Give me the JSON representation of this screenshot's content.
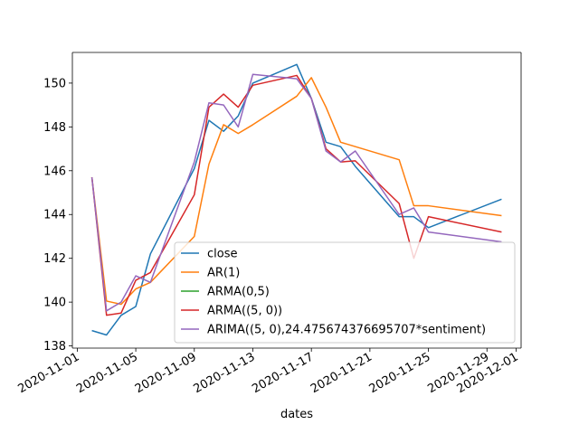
{
  "chart_data": {
    "type": "line",
    "title": "",
    "xlabel": "dates",
    "ylabel": "",
    "x_ticks": [
      {
        "date": "2020-11-01",
        "label": "2020-11-01"
      },
      {
        "date": "2020-11-05",
        "label": "2020-11-05"
      },
      {
        "date": "2020-11-09",
        "label": "2020-11-09"
      },
      {
        "date": "2020-11-13",
        "label": "2020-11-13"
      },
      {
        "date": "2020-11-17",
        "label": "2020-11-17"
      },
      {
        "date": "2020-11-21",
        "label": "2020-11-21"
      },
      {
        "date": "2020-11-25",
        "label": "2020-11-25"
      },
      {
        "date": "2020-11-29",
        "label": "2020-11-29"
      },
      {
        "date": "2020-12-01",
        "label": "2020-12-01"
      }
    ],
    "y_ticks": [
      {
        "value": 138,
        "label": "138"
      },
      {
        "value": 140,
        "label": "140"
      },
      {
        "value": 142,
        "label": "142"
      },
      {
        "value": 144,
        "label": "144"
      },
      {
        "value": 146,
        "label": "146"
      },
      {
        "value": 148,
        "label": "148"
      },
      {
        "value": 150,
        "label": "150"
      }
    ],
    "xlim": [
      "2020-10-31T16:00",
      "2020-12-01T08:00"
    ],
    "ylim": [
      137.9,
      151.4
    ],
    "grid": false,
    "legend_position": "lower-right",
    "series": [
      {
        "name": "close",
        "color": "#1f77b4",
        "points": [
          {
            "x": "2020-11-02",
            "y": 138.7
          },
          {
            "x": "2020-11-03",
            "y": 138.5
          },
          {
            "x": "2020-11-04",
            "y": 139.4
          },
          {
            "x": "2020-11-05",
            "y": 139.8
          },
          {
            "x": "2020-11-06",
            "y": 142.2
          },
          {
            "x": "2020-11-09",
            "y": 146.1
          },
          {
            "x": "2020-11-10",
            "y": 148.3
          },
          {
            "x": "2020-11-11",
            "y": 147.8
          },
          {
            "x": "2020-11-12",
            "y": 148.5
          },
          {
            "x": "2020-11-13",
            "y": 150.0
          },
          {
            "x": "2020-11-16",
            "y": 150.85
          },
          {
            "x": "2020-11-17",
            "y": 149.3
          },
          {
            "x": "2020-11-18",
            "y": 147.3
          },
          {
            "x": "2020-11-19",
            "y": 147.1
          },
          {
            "x": "2020-11-20",
            "y": 146.2
          },
          {
            "x": "2020-11-23",
            "y": 143.9
          },
          {
            "x": "2020-11-24",
            "y": 143.9
          },
          {
            "x": "2020-11-25",
            "y": 143.4
          },
          {
            "x": "2020-11-30",
            "y": 144.7
          }
        ]
      },
      {
        "name": "AR(1)",
        "color": "#ff7f0e",
        "points": [
          {
            "x": "2020-11-02",
            "y": 145.7
          },
          {
            "x": "2020-11-03",
            "y": 140.05
          },
          {
            "x": "2020-11-04",
            "y": 139.9
          },
          {
            "x": "2020-11-05",
            "y": 140.6
          },
          {
            "x": "2020-11-06",
            "y": 140.9
          },
          {
            "x": "2020-11-09",
            "y": 143.0
          },
          {
            "x": "2020-11-10",
            "y": 146.3
          },
          {
            "x": "2020-11-11",
            "y": 148.1
          },
          {
            "x": "2020-11-12",
            "y": 147.7
          },
          {
            "x": "2020-11-13",
            "y": 148.1
          },
          {
            "x": "2020-11-16",
            "y": 149.4
          },
          {
            "x": "2020-11-17",
            "y": 150.25
          },
          {
            "x": "2020-11-18",
            "y": 148.9
          },
          {
            "x": "2020-11-19",
            "y": 147.3
          },
          {
            "x": "2020-11-23",
            "y": 146.5
          },
          {
            "x": "2020-11-24",
            "y": 144.4
          },
          {
            "x": "2020-11-25",
            "y": 144.4
          },
          {
            "x": "2020-11-30",
            "y": 143.95
          }
        ]
      },
      {
        "name": "ARMA(0,5)",
        "color": "#2ca02c",
        "points": []
      },
      {
        "name": "ARMA((5, 0))",
        "color": "#d62728",
        "points": [
          {
            "x": "2020-11-02",
            "y": 145.7
          },
          {
            "x": "2020-11-03",
            "y": 139.4
          },
          {
            "x": "2020-11-04",
            "y": 139.5
          },
          {
            "x": "2020-11-05",
            "y": 141.0
          },
          {
            "x": "2020-11-06",
            "y": 141.35
          },
          {
            "x": "2020-11-09",
            "y": 144.9
          },
          {
            "x": "2020-11-10",
            "y": 148.9
          },
          {
            "x": "2020-11-11",
            "y": 149.5
          },
          {
            "x": "2020-11-12",
            "y": 148.9
          },
          {
            "x": "2020-11-13",
            "y": 149.9
          },
          {
            "x": "2020-11-16",
            "y": 150.35
          },
          {
            "x": "2020-11-17",
            "y": 149.3
          },
          {
            "x": "2020-11-18",
            "y": 147.0
          },
          {
            "x": "2020-11-19",
            "y": 146.4
          },
          {
            "x": "2020-11-20",
            "y": 146.45
          },
          {
            "x": "2020-11-23",
            "y": 144.5
          },
          {
            "x": "2020-11-24",
            "y": 142.0
          },
          {
            "x": "2020-11-25",
            "y": 143.9
          },
          {
            "x": "2020-11-30",
            "y": 143.2
          }
        ]
      },
      {
        "name": "ARIMA((5, 0),24.475674376695707*sentiment)",
        "color": "#9467bd",
        "points": [
          {
            "x": "2020-11-02",
            "y": 145.7
          },
          {
            "x": "2020-11-03",
            "y": 139.6
          },
          {
            "x": "2020-11-04",
            "y": 140.0
          },
          {
            "x": "2020-11-05",
            "y": 141.2
          },
          {
            "x": "2020-11-06",
            "y": 140.9
          },
          {
            "x": "2020-11-09",
            "y": 146.4
          },
          {
            "x": "2020-11-10",
            "y": 149.1
          },
          {
            "x": "2020-11-11",
            "y": 149.0
          },
          {
            "x": "2020-11-12",
            "y": 148.0
          },
          {
            "x": "2020-11-13",
            "y": 150.4
          },
          {
            "x": "2020-11-16",
            "y": 150.2
          },
          {
            "x": "2020-11-17",
            "y": 149.3
          },
          {
            "x": "2020-11-18",
            "y": 146.9
          },
          {
            "x": "2020-11-19",
            "y": 146.4
          },
          {
            "x": "2020-11-20",
            "y": 146.9
          },
          {
            "x": "2020-11-23",
            "y": 144.0
          },
          {
            "x": "2020-11-24",
            "y": 144.3
          },
          {
            "x": "2020-11-25",
            "y": 143.2
          },
          {
            "x": "2020-11-30",
            "y": 142.75
          }
        ]
      }
    ]
  }
}
